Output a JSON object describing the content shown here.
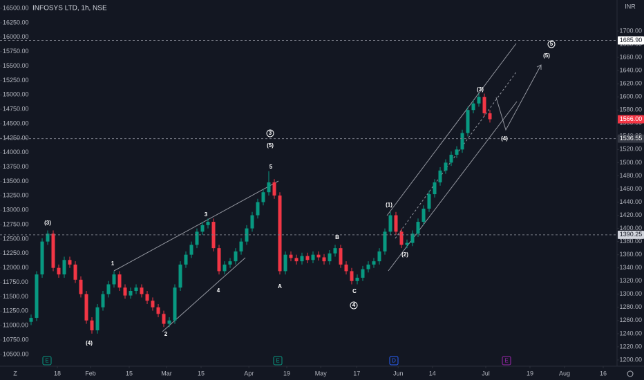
{
  "chart_data": {
    "type": "candlestick",
    "title": "INFOSYS LTD, 1h, NSE",
    "currency": "INR",
    "up_color": "#089981",
    "down_color": "#f23645",
    "xlim": [
      -1.625,
      106
    ],
    "xticks": [
      {
        "value": 4.75,
        "label": "18"
      },
      {
        "value": 10.75,
        "label": "Feb"
      },
      {
        "value": 17.75,
        "label": "15"
      },
      {
        "value": 24.5,
        "label": "Mar"
      },
      {
        "value": 30.75,
        "label": "15"
      },
      {
        "value": 39.4,
        "label": "Apr"
      },
      {
        "value": 46.25,
        "label": "19"
      },
      {
        "value": 52.4,
        "label": "May"
      },
      {
        "value": 58.9,
        "label": "17"
      },
      {
        "value": 66.4,
        "label": "Jun"
      },
      {
        "value": 72.6,
        "label": "14"
      },
      {
        "value": 82.25,
        "label": "Jul"
      },
      {
        "value": 90.25,
        "label": "19"
      },
      {
        "value": 96.5,
        "label": "Aug"
      },
      {
        "value": 103.5,
        "label": "16"
      }
    ],
    "ylim": [
      10296,
      16644
    ],
    "yticks": [
      {
        "value": 10500,
        "label": "10500.00"
      },
      {
        "value": 10750,
        "label": "10750.00"
      },
      {
        "value": 11000,
        "label": "11000.00"
      },
      {
        "value": 11250,
        "label": "11250.00"
      },
      {
        "value": 11500,
        "label": "11500.00"
      },
      {
        "value": 11750,
        "label": "11750.00"
      },
      {
        "value": 12000,
        "label": "12000.00"
      },
      {
        "value": 12250,
        "label": "12250.00"
      },
      {
        "value": 12500,
        "label": "12500.00"
      },
      {
        "value": 12750,
        "label": "12750.00"
      },
      {
        "value": 13000,
        "label": "13000.00"
      },
      {
        "value": 13250,
        "label": "13250.00"
      },
      {
        "value": 13500,
        "label": "13500.00"
      },
      {
        "value": 13750,
        "label": "13750.00"
      },
      {
        "value": 14000,
        "label": "14000.00"
      },
      {
        "value": 14250,
        "label": "14250.00"
      },
      {
        "value": 14500,
        "label": "14500.00"
      },
      {
        "value": 14750,
        "label": "14750.00"
      },
      {
        "value": 15000,
        "label": "15000.00"
      },
      {
        "value": 15250,
        "label": "15250.00"
      },
      {
        "value": 15500,
        "label": "15500.00"
      },
      {
        "value": 15750,
        "label": "15750.00"
      },
      {
        "value": 16000,
        "label": "16000.00"
      },
      {
        "value": 16250,
        "label": "16250.00"
      },
      {
        "value": 16500,
        "label": "16500.00"
      }
    ],
    "y2lim": [
      1190.5,
      1747.3
    ],
    "y2ticks": [
      {
        "value": 1200,
        "label": "1200.00"
      },
      {
        "value": 1220,
        "label": "1220.00"
      },
      {
        "value": 1240,
        "label": "1240.00"
      },
      {
        "value": 1260,
        "label": "1260.00"
      },
      {
        "value": 1280,
        "label": "1280.00"
      },
      {
        "value": 1300,
        "label": "1300.00"
      },
      {
        "value": 1320,
        "label": "1320.00"
      },
      {
        "value": 1340,
        "label": "1340.00"
      },
      {
        "value": 1360,
        "label": "1360.00"
      },
      {
        "value": 1380,
        "label": "1380.00"
      },
      {
        "value": 1400,
        "label": "1400.00"
      },
      {
        "value": 1420,
        "label": "1420.00"
      },
      {
        "value": 1440,
        "label": "1440.00"
      },
      {
        "value": 1460,
        "label": "1460.00"
      },
      {
        "value": 1480,
        "label": "1480.00"
      },
      {
        "value": 1500,
        "label": "1500.00"
      },
      {
        "value": 1520,
        "label": "1520.00"
      },
      {
        "value": 1540,
        "label": "1540.00"
      },
      {
        "value": 1560,
        "label": "1560.00"
      },
      {
        "value": 1580,
        "label": "1580.00"
      },
      {
        "value": 1600,
        "label": "1600.00"
      },
      {
        "value": 1620,
        "label": "1620.00"
      },
      {
        "value": 1640,
        "label": "1640.00"
      },
      {
        "value": 1660,
        "label": "1660.00"
      },
      {
        "value": 1680,
        "label": "1680.00"
      },
      {
        "value": 1700,
        "label": "1700.00"
      }
    ],
    "axis": "y2",
    "candles": [
      [
        1258,
        1269,
        1253,
        1264
      ],
      [
        1264,
        1335,
        1259,
        1330
      ],
      [
        1330,
        1385,
        1325,
        1380
      ],
      [
        1380,
        1397,
        1375,
        1392
      ],
      [
        1392,
        1397,
        1335,
        1340
      ],
      [
        1340,
        1345,
        1325,
        1330
      ],
      [
        1330,
        1357,
        1325,
        1352
      ],
      [
        1352,
        1357,
        1340,
        1345
      ],
      [
        1345,
        1350,
        1317,
        1322
      ],
      [
        1322,
        1327,
        1295,
        1300
      ],
      [
        1300,
        1305,
        1255,
        1260
      ],
      [
        1260,
        1265,
        1240,
        1245
      ],
      [
        1245,
        1285,
        1240,
        1280
      ],
      [
        1280,
        1305,
        1275,
        1300
      ],
      [
        1300,
        1320,
        1295,
        1315
      ],
      [
        1315,
        1335,
        1310,
        1330
      ],
      [
        1330,
        1335,
        1305,
        1310
      ],
      [
        1310,
        1315,
        1293,
        1298
      ],
      [
        1298,
        1310,
        1293,
        1305
      ],
      [
        1305,
        1315,
        1300,
        1310
      ],
      [
        1310,
        1315,
        1295,
        1300
      ],
      [
        1300,
        1305,
        1285,
        1290
      ],
      [
        1290,
        1295,
        1275,
        1280
      ],
      [
        1280,
        1285,
        1265,
        1270
      ],
      [
        1270,
        1275,
        1250,
        1255
      ],
      [
        1255,
        1265,
        1250,
        1260
      ],
      [
        1260,
        1315,
        1255,
        1310
      ],
      [
        1310,
        1350,
        1305,
        1345
      ],
      [
        1345,
        1365,
        1340,
        1360
      ],
      [
        1360,
        1380,
        1355,
        1375
      ],
      [
        1375,
        1400,
        1370,
        1395
      ],
      [
        1395,
        1410,
        1390,
        1405
      ],
      [
        1405,
        1415,
        1400,
        1410
      ],
      [
        1410,
        1415,
        1365,
        1370
      ],
      [
        1370,
        1375,
        1330,
        1335
      ],
      [
        1335,
        1350,
        1330,
        1345
      ],
      [
        1345,
        1355,
        1340,
        1350
      ],
      [
        1350,
        1370,
        1345,
        1365
      ],
      [
        1365,
        1385,
        1360,
        1380
      ],
      [
        1380,
        1405,
        1375,
        1400
      ],
      [
        1400,
        1425,
        1395,
        1420
      ],
      [
        1420,
        1445,
        1415,
        1440
      ],
      [
        1440,
        1460,
        1435,
        1455
      ],
      [
        1455,
        1487,
        1450,
        1470
      ],
      [
        1470,
        1475,
        1445,
        1450
      ],
      [
        1450,
        1455,
        1330,
        1335
      ],
      [
        1335,
        1365,
        1330,
        1360
      ],
      [
        1360,
        1365,
        1350,
        1355
      ],
      [
        1355,
        1360,
        1345,
        1350
      ],
      [
        1350,
        1363,
        1345,
        1358
      ],
      [
        1358,
        1363,
        1347,
        1352
      ],
      [
        1352,
        1365,
        1347,
        1360
      ],
      [
        1360,
        1365,
        1351,
        1356
      ],
      [
        1356,
        1361,
        1345,
        1350
      ],
      [
        1350,
        1367,
        1345,
        1362
      ],
      [
        1362,
        1375,
        1357,
        1370
      ],
      [
        1370,
        1375,
        1340,
        1345
      ],
      [
        1345,
        1350,
        1330,
        1335
      ],
      [
        1335,
        1340,
        1315,
        1320
      ],
      [
        1320,
        1330,
        1315,
        1325
      ],
      [
        1325,
        1343,
        1320,
        1338
      ],
      [
        1338,
        1350,
        1333,
        1345
      ],
      [
        1345,
        1355,
        1340,
        1350
      ],
      [
        1350,
        1370,
        1345,
        1365
      ],
      [
        1365,
        1400,
        1360,
        1395
      ],
      [
        1395,
        1425,
        1390,
        1420
      ],
      [
        1420,
        1425,
        1390,
        1395
      ],
      [
        1395,
        1400,
        1370,
        1375
      ],
      [
        1375,
        1383,
        1370,
        1378
      ],
      [
        1378,
        1397,
        1373,
        1392
      ],
      [
        1392,
        1415,
        1387,
        1410
      ],
      [
        1410,
        1435,
        1405,
        1430
      ],
      [
        1430,
        1457,
        1425,
        1452
      ],
      [
        1452,
        1475,
        1447,
        1470
      ],
      [
        1470,
        1493,
        1465,
        1488
      ],
      [
        1488,
        1505,
        1483,
        1500
      ],
      [
        1500,
        1517,
        1495,
        1512
      ],
      [
        1512,
        1525,
        1507,
        1520
      ],
      [
        1520,
        1550,
        1515,
        1545
      ],
      [
        1545,
        1585,
        1540,
        1580
      ],
      [
        1580,
        1595,
        1575,
        1590
      ],
      [
        1590,
        1605,
        1585,
        1600
      ],
      [
        1600,
        1605,
        1570,
        1575
      ],
      [
        1575,
        1580,
        1561,
        1566
      ]
    ],
    "price_lines": [
      {
        "value": 1685.9,
        "label": "1685.90"
      },
      {
        "value": 1566,
        "label": "1566.00"
      },
      {
        "value": 1536.55,
        "label": "1536.55"
      },
      {
        "value": 1390.25,
        "label": "1390.25"
      }
    ],
    "annotations": [
      "(3)",
      "(4)",
      "1",
      "2",
      "3",
      "4",
      "5",
      "(5)",
      "3",
      "A",
      "B",
      "C",
      "4",
      "(1)",
      "(2)",
      "(3)",
      "(4)",
      "(5)",
      "5"
    ],
    "events": [
      "E",
      "E",
      "D",
      "E"
    ]
  }
}
